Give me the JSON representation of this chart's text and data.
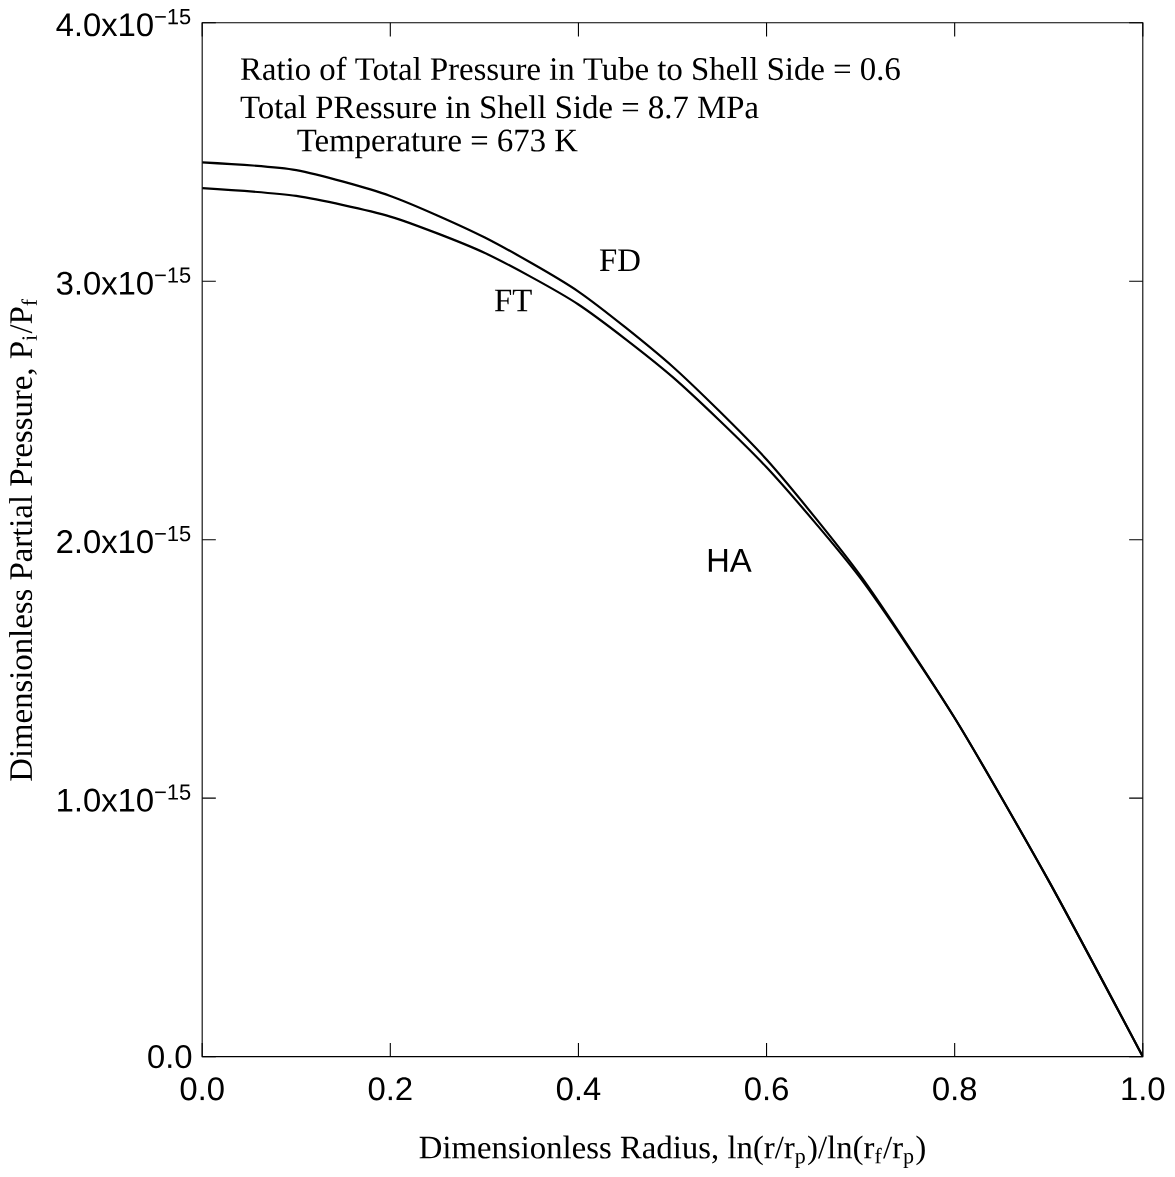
{
  "chart_data": {
    "type": "line",
    "xlabel": "Dimensionless Radius, ln(r/r$_{p}$)/ln(r$_{f}$/r$_{p}$)",
    "ylabel": "Dimensionless Partial Pressure, P$_{i}$/P$_{f}$",
    "x": [
      0,
      0.1,
      0.2,
      0.3,
      0.4,
      0.5,
      0.6,
      0.7,
      0.8,
      0.9,
      1.0
    ],
    "series": [
      {
        "name": "FD",
        "color": "#000000",
        "values": [
          3.46e-15,
          3.43e-15,
          3.33e-15,
          3.17e-15,
          2.96e-15,
          2.67e-15,
          2.31e-15,
          1.86e-15,
          1.31e-15,
          6.8e-16,
          0
        ]
      },
      {
        "name": "FT",
        "color": "#000000",
        "values": [
          3.36e-15,
          3.33e-15,
          3.25e-15,
          3.11e-15,
          2.91e-15,
          2.63e-15,
          2.28e-15,
          1.85e-15,
          1.31e-15,
          6.8e-16,
          0
        ]
      }
    ],
    "annotations": [
      "Ratio of Total Pressure in Tube to Shell Side = 0.6",
      "Total PRessure in Shell Side = 8.7 MPa",
      "Temperature = 673 K",
      "HA"
    ],
    "xlim": [
      0,
      1.0
    ],
    "ylim": [
      0,
      4e-15
    ],
    "xticks": [
      {
        "value": 0,
        "label": "0.0"
      },
      {
        "value": 0.2,
        "label": "0.2"
      },
      {
        "value": 0.4,
        "label": "0.4"
      },
      {
        "value": 0.6,
        "label": "0.6"
      },
      {
        "value": 0.8,
        "label": "0.8"
      },
      {
        "value": 1.0,
        "label": "1.0"
      }
    ],
    "yticks": [
      {
        "value": 0,
        "label": "0.0"
      },
      {
        "value": 1e-15,
        "label": "1.0x10$^{−15}$"
      },
      {
        "value": 2e-15,
        "label": "2.0x10$^{−15}$"
      },
      {
        "value": 3e-15,
        "label": "3.0x10$^{−15}$"
      },
      {
        "value": 4e-15,
        "label": "4.0x10$^{−15}$"
      }
    ],
    "grid": false,
    "legend": false,
    "marker": "none",
    "line_style": "solid"
  }
}
